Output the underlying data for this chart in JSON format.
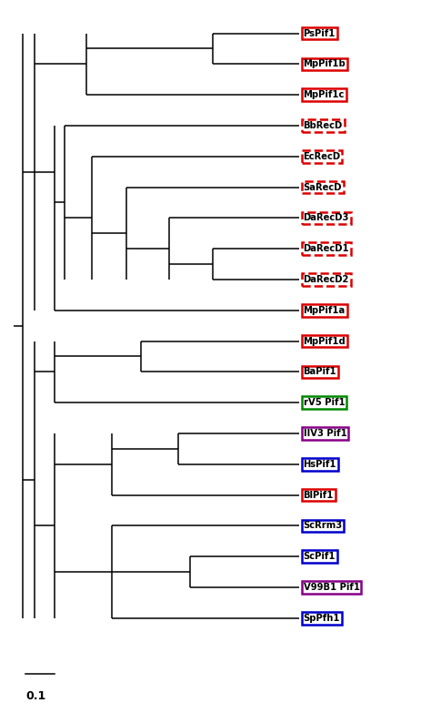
{
  "taxa": [
    {
      "name": "PsPif1",
      "y": 0,
      "box_color": "#dd0000",
      "dashed": false
    },
    {
      "name": "MpPif1b",
      "y": 1,
      "box_color": "#dd0000",
      "dashed": false
    },
    {
      "name": "MpPif1c",
      "y": 2,
      "box_color": "#dd0000",
      "dashed": false
    },
    {
      "name": "BbRecD",
      "y": 3,
      "box_color": "#dd0000",
      "dashed": true
    },
    {
      "name": "EcRecD",
      "y": 4,
      "box_color": "#dd0000",
      "dashed": true
    },
    {
      "name": "SaRecD",
      "y": 5,
      "box_color": "#dd0000",
      "dashed": true
    },
    {
      "name": "DaRecD3",
      "y": 6,
      "box_color": "#dd0000",
      "dashed": true
    },
    {
      "name": "DaRecD1",
      "y": 7,
      "box_color": "#dd0000",
      "dashed": true
    },
    {
      "name": "DaRecD2",
      "y": 8,
      "box_color": "#dd0000",
      "dashed": true
    },
    {
      "name": "MpPif1a",
      "y": 9,
      "box_color": "#dd0000",
      "dashed": false
    },
    {
      "name": "MpPif1d",
      "y": 10,
      "box_color": "#dd0000",
      "dashed": false
    },
    {
      "name": "BaPif1",
      "y": 11,
      "box_color": "#dd0000",
      "dashed": false
    },
    {
      "name": "rV5 Pif1",
      "y": 12,
      "box_color": "#008800",
      "dashed": false
    },
    {
      "name": "IIV3 Pif1",
      "y": 13,
      "box_color": "#880088",
      "dashed": false
    },
    {
      "name": "HsPif1",
      "y": 14,
      "box_color": "#0000cc",
      "dashed": false
    },
    {
      "name": "BlPif1",
      "y": 15,
      "box_color": "#dd0000",
      "dashed": false
    },
    {
      "name": "ScRrm3",
      "y": 16,
      "box_color": "#0000cc",
      "dashed": false
    },
    {
      "name": "ScPif1",
      "y": 17,
      "box_color": "#0000cc",
      "dashed": false
    },
    {
      "name": "V99B1 Pif1",
      "y": 18,
      "box_color": "#880088",
      "dashed": false
    },
    {
      "name": "SpPfh1",
      "y": 19,
      "box_color": "#0000cc",
      "dashed": false
    }
  ],
  "figsize": [
    4.74,
    7.83
  ],
  "dpi": 100,
  "scale_label": "0.1"
}
